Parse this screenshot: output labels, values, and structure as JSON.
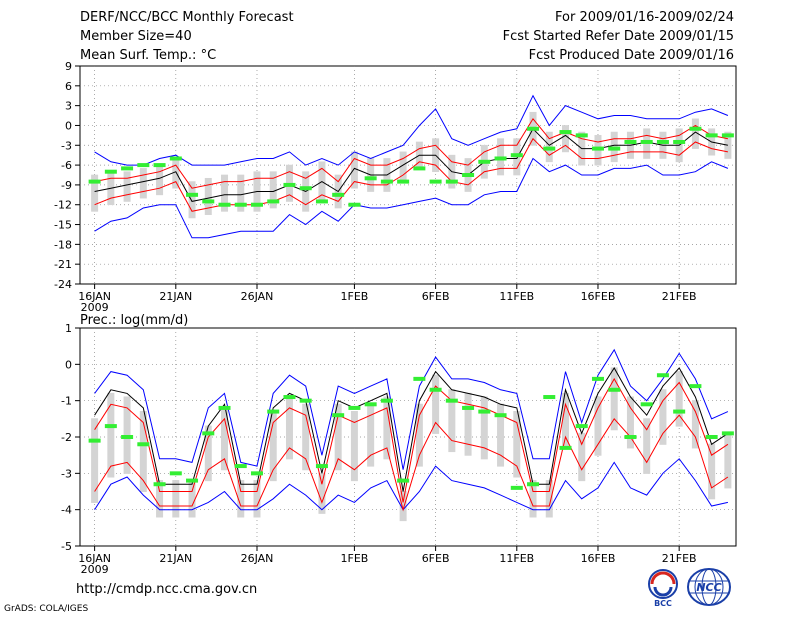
{
  "header": {
    "title": "DERF/NCC/BCC Monthly Forecast",
    "member_size": "Member Size=40",
    "variable": "Mean Surf. Temp.: °C",
    "period": "For 2009/01/16-2009/02/24",
    "started": "Fcst Started Refer Date 2009/01/15",
    "produced": "Fcst Produced Date 2009/01/16"
  },
  "footer": {
    "url": "http://cmdp.ncc.cma.gov.cn",
    "credit": "GrADS: COLA/IGES",
    "logo_bcc": "BCC",
    "logo_ncc": "NCC"
  },
  "chart_data": [
    {
      "type": "line",
      "title": "Mean Surf. Temp.: °C",
      "ylabel": "°C",
      "ylim": [
        -24,
        9
      ],
      "yticks": [
        9,
        6,
        3,
        0,
        -3,
        -6,
        -9,
        -12,
        -15,
        -18,
        -21,
        -24
      ],
      "ytick_labels": [
        "9",
        "6",
        "3",
        "0",
        "-3",
        "-6",
        "-9",
        "-12",
        "-15",
        "-18",
        "-21",
        "-24"
      ],
      "xtick_labels": [
        "16JAN",
        "21JAN",
        "26JAN",
        "1FEB",
        "6FEB",
        "11FEB",
        "16FEB",
        "21FEB"
      ],
      "xtick_days": [
        0,
        5,
        10,
        16,
        21,
        26,
        31,
        36
      ],
      "year_label": "2009",
      "n_days": 40,
      "series": [
        {
          "name": "max",
          "color": "#0000ff",
          "values": [
            -4,
            -5.5,
            -6,
            -6,
            -5,
            -4.5,
            -6,
            -6,
            -6,
            -5.5,
            -5,
            -5,
            -4,
            -6,
            -5,
            -6,
            -4,
            -5,
            -4,
            -3,
            0,
            2.5,
            -2,
            -3,
            -2,
            -1,
            -0.5,
            4.5,
            0,
            3,
            2,
            1,
            1.5,
            1.5,
            1,
            1,
            1,
            2,
            2.5,
            1.5
          ]
        },
        {
          "name": "upper",
          "color": "#ff0000",
          "values": [
            -8.5,
            -8,
            -8,
            -7.5,
            -7,
            -6,
            -9.5,
            -9,
            -8.5,
            -8.5,
            -8,
            -8,
            -7,
            -8,
            -6.5,
            -8.5,
            -5,
            -6,
            -6,
            -5,
            -3.5,
            -3,
            -5.5,
            -6,
            -4,
            -3,
            -3,
            1,
            -2,
            -1,
            -2,
            -2.5,
            -2,
            -2,
            -1.5,
            -2,
            -1.5,
            0,
            -1.5,
            -2
          ]
        },
        {
          "name": "mean",
          "color": "#000000",
          "values": [
            -10,
            -9.5,
            -9,
            -8.5,
            -8,
            -7,
            -11.5,
            -11,
            -10.5,
            -10.5,
            -10,
            -10,
            -9,
            -10,
            -8.5,
            -10,
            -6.5,
            -7.5,
            -7.5,
            -6,
            -4.5,
            -4.5,
            -7,
            -7.5,
            -5.5,
            -5,
            -5,
            -0.5,
            -3,
            -1.5,
            -3.5,
            -3.5,
            -3,
            -3,
            -2.5,
            -3,
            -3,
            -1,
            -2.5,
            -3
          ]
        },
        {
          "name": "lower",
          "color": "#ff0000",
          "values": [
            -12,
            -11,
            -10.5,
            -10,
            -9.5,
            -8.5,
            -13,
            -12.5,
            -12,
            -12,
            -12,
            -11.5,
            -10.5,
            -12,
            -10.5,
            -11.5,
            -8.5,
            -9,
            -9,
            -7.5,
            -5.5,
            -6,
            -8.5,
            -9,
            -7,
            -6.5,
            -6.5,
            -2,
            -4.5,
            -3,
            -5,
            -5,
            -4.5,
            -4,
            -4,
            -4,
            -4.5,
            -2.5,
            -3.5,
            -4
          ]
        },
        {
          "name": "min",
          "color": "#0000ff",
          "values": [
            -16,
            -14.5,
            -14,
            -12.5,
            -12,
            -12,
            -17,
            -17,
            -16.5,
            -16,
            -16,
            -16,
            -13.5,
            -15,
            -13,
            -14.5,
            -12,
            -12.5,
            -12.5,
            -12,
            -11.5,
            -11,
            -12,
            -12,
            -10.5,
            -10,
            -10,
            -5,
            -7,
            -6,
            -7.5,
            -7.5,
            -6.5,
            -6.5,
            -6,
            -7.5,
            -7.5,
            -7,
            -5.5,
            -6.5
          ]
        },
        {
          "name": "observed",
          "color": "#33ee33",
          "values": [
            -8.5,
            -7,
            -6.5,
            -6,
            -6,
            -5,
            -10.5,
            -11.5,
            -12,
            -12,
            -12,
            -11.5,
            -9,
            -9.5,
            -11.5,
            -10.5,
            -12,
            -8,
            -8.5,
            -8.5,
            -6.5,
            -8.5,
            -8.5,
            -7.5,
            -5.5,
            -5,
            -4.5,
            -0.5,
            -3.5,
            -1,
            -1.5,
            -3.5,
            -3.5,
            -2.5,
            -2.5,
            -2.5,
            -2.5,
            -0.5,
            -1.5,
            -1.5
          ]
        }
      ]
    },
    {
      "type": "line",
      "title": "Prec.: log(mm/d)",
      "ylabel": "log(mm/d)",
      "ylim": [
        -5,
        1
      ],
      "yticks": [
        1,
        0,
        -1,
        -2,
        -3,
        -4,
        -5
      ],
      "ytick_labels": [
        "1",
        "0",
        "-1",
        "-2",
        "-3",
        "-4",
        "-5"
      ],
      "xtick_labels": [
        "16JAN",
        "21JAN",
        "26JAN",
        "1FEB",
        "6FEB",
        "11FEB",
        "16FEB",
        "21FEB"
      ],
      "xtick_days": [
        0,
        5,
        10,
        16,
        21,
        26,
        31,
        36
      ],
      "year_label": "2009",
      "n_days": 40,
      "series": [
        {
          "name": "max",
          "color": "#0000ff",
          "values": [
            -0.8,
            -0.2,
            -0.3,
            -0.7,
            -2.6,
            -2.6,
            -2.7,
            -1.2,
            -0.8,
            -2.7,
            -2.8,
            -0.8,
            -0.3,
            -0.6,
            -2.5,
            -0.6,
            -0.8,
            -0.6,
            -0.4,
            -2.9,
            -0.6,
            0.2,
            -0.4,
            -0.4,
            -0.5,
            -0.7,
            -0.8,
            -2.6,
            -2.6,
            -0.2,
            -1.6,
            -0.3,
            0.4,
            -0.6,
            -1.0,
            -0.4,
            0.3,
            -0.4,
            -1.5,
            -1.3
          ]
        },
        {
          "name": "upper",
          "color": "#ff0000",
          "values": [
            -1.8,
            -1.1,
            -1.2,
            -1.6,
            -3.5,
            -3.5,
            -3.5,
            -2.0,
            -1.5,
            -3.5,
            -3.5,
            -1.6,
            -1.2,
            -1.4,
            -3.3,
            -1.4,
            -1.6,
            -1.4,
            -1.2,
            -3.8,
            -1.4,
            -0.6,
            -1.0,
            -1.1,
            -1.2,
            -1.4,
            -1.6,
            -3.5,
            -3.5,
            -1.1,
            -2.2,
            -1.2,
            -0.4,
            -1.2,
            -1.8,
            -1.0,
            -0.5,
            -1.3,
            -2.5,
            -2.2
          ]
        },
        {
          "name": "mean",
          "color": "#000000",
          "values": [
            -1.4,
            -0.7,
            -0.8,
            -1.2,
            -3.3,
            -3.3,
            -3.3,
            -1.7,
            -1.1,
            -3.3,
            -3.3,
            -1.2,
            -0.8,
            -1.0,
            -3.0,
            -1.0,
            -1.2,
            -1.0,
            -0.8,
            -3.5,
            -1.0,
            -0.2,
            -0.7,
            -0.8,
            -0.9,
            -1.1,
            -1.2,
            -3.3,
            -3.3,
            -0.7,
            -1.9,
            -0.8,
            -0.1,
            -0.9,
            -1.4,
            -0.6,
            -0.1,
            -0.9,
            -2.2,
            -1.9
          ]
        },
        {
          "name": "lower",
          "color": "#ff0000",
          "values": [
            -3.5,
            -2.8,
            -2.7,
            -3.2,
            -3.9,
            -3.9,
            -3.9,
            -2.9,
            -2.6,
            -3.9,
            -3.9,
            -2.9,
            -2.3,
            -2.6,
            -3.8,
            -2.6,
            -2.9,
            -2.5,
            -2.3,
            -4.0,
            -2.5,
            -1.6,
            -2.1,
            -2.2,
            -2.3,
            -2.5,
            -2.8,
            -3.9,
            -3.9,
            -2.0,
            -2.9,
            -2.2,
            -1.5,
            -2.0,
            -2.7,
            -1.9,
            -1.4,
            -2.0,
            -3.4,
            -3.1
          ]
        },
        {
          "name": "min",
          "color": "#0000ff",
          "values": [
            -4.0,
            -3.3,
            -3.1,
            -3.6,
            -4.0,
            -4.0,
            -4.0,
            -3.8,
            -3.5,
            -4.0,
            -4.0,
            -3.7,
            -3.3,
            -3.6,
            -4.0,
            -3.6,
            -3.8,
            -3.4,
            -3.2,
            -4.0,
            -3.5,
            -2.8,
            -3.2,
            -3.3,
            -3.4,
            -3.6,
            -3.8,
            -4.0,
            -4.0,
            -3.2,
            -3.7,
            -3.4,
            -2.7,
            -3.4,
            -3.6,
            -3.0,
            -2.6,
            -3.2,
            -3.9,
            -3.8
          ]
        },
        {
          "name": "observed",
          "color": "#33ee33",
          "values": [
            -2.1,
            -1.7,
            -2.0,
            -2.2,
            -3.3,
            -3.0,
            -3.2,
            -1.9,
            -1.2,
            -2.8,
            -3.0,
            -1.3,
            -0.9,
            -1.0,
            -2.8,
            -1.4,
            -1.2,
            -1.1,
            -1.0,
            -3.2,
            -0.4,
            -0.7,
            -1.0,
            -1.2,
            -1.3,
            -1.4,
            -3.4,
            -3.3,
            -0.9,
            -2.3,
            -1.7,
            -0.4,
            -0.7,
            -2.0,
            -1.1,
            -0.3,
            -1.3,
            -0.6,
            -2.0,
            -1.9
          ]
        }
      ]
    }
  ]
}
